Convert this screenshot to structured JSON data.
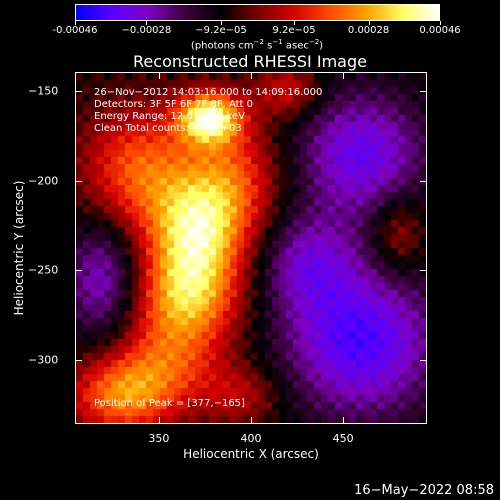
{
  "title": "Reconstructed RHESSI Image",
  "colorbar": {
    "ticks": [
      -0.00046,
      -0.00028,
      -9.2e-05,
      9.2e-05,
      0.00028,
      0.00046
    ],
    "tick_labels": [
      "-0.00046",
      "−0.00028",
      "−9.2e−05",
      "9.2e−05",
      "0.00028",
      "0.00046"
    ],
    "units_label": "(photons cm",
    "units_exp1": "−2",
    "units_mid": " s",
    "units_exp2": "−1",
    "units_mid2": " asec",
    "units_exp3": "−2",
    "units_end": ")",
    "range": [
      -0.00046,
      0.00046
    ],
    "colors": [
      "#0000ff",
      "#5a00ff",
      "#7f00c0",
      "#3c003c",
      "#000000",
      "#7a0000",
      "#d40000",
      "#ff4a00",
      "#ffa000",
      "#ffff60",
      "#ffffff"
    ]
  },
  "annotations": {
    "line1": "26−Nov−2012 14:03:16.000 to 14:09:16.000",
    "line2": "Detectors: 3F 5F 6F 7F 8F, Att 0",
    "line3": "Energy Range: 12.0−25.0 keV",
    "line4": "Clean    Total counts: 5.44E+03",
    "peak": "Position of Peak = [377,−165]"
  },
  "chart_data": {
    "type": "heatmap",
    "title": "Reconstructed RHESSI Image",
    "xlabel": "Heliocentric X (arcsec)",
    "ylabel": "Heliocentric Y (arcsec)",
    "xlim": [
      305,
      495
    ],
    "ylim": [
      -335,
      -140
    ],
    "x_ticks": [
      350,
      400,
      450
    ],
    "y_ticks": [
      -150,
      -200,
      -250,
      -300
    ],
    "x_tick_labels": [
      "350",
      "400",
      "450"
    ],
    "y_tick_labels": [
      "−150",
      "−200",
      "−250",
      "−300"
    ],
    "peak_position": [
      377,
      -165
    ],
    "features": [
      {
        "x": 377,
        "y": -165,
        "amp": 0.00046,
        "sx": 12,
        "sy": 10
      },
      {
        "x": 370,
        "y": -230,
        "amp": 0.00038,
        "sx": 18,
        "sy": 22
      },
      {
        "x": 365,
        "y": -265,
        "amp": 0.00032,
        "sx": 20,
        "sy": 18
      },
      {
        "x": 340,
        "y": -195,
        "amp": 0.00028,
        "sx": 22,
        "sy": 25
      },
      {
        "x": 390,
        "y": -200,
        "amp": 0.00024,
        "sx": 18,
        "sy": 25
      },
      {
        "x": 330,
        "y": -320,
        "amp": 0.0003,
        "sx": 20,
        "sy": 15
      },
      {
        "x": 355,
        "y": -300,
        "amp": 0.00022,
        "sx": 22,
        "sy": 18
      },
      {
        "x": 420,
        "y": -150,
        "amp": 0.00018,
        "sx": 12,
        "sy": 10
      },
      {
        "x": 480,
        "y": -230,
        "amp": 0.00015,
        "sx": 10,
        "sy": 15
      },
      {
        "x": 395,
        "y": -320,
        "amp": 0.00014,
        "sx": 15,
        "sy": 12
      },
      {
        "x": 460,
        "y": -185,
        "amp": -0.00026,
        "sx": 25,
        "sy": 25
      },
      {
        "x": 460,
        "y": -290,
        "amp": -0.0003,
        "sx": 30,
        "sy": 30
      },
      {
        "x": 320,
        "y": -255,
        "amp": -0.00022,
        "sx": 15,
        "sy": 25
      },
      {
        "x": 430,
        "y": -245,
        "amp": -0.00018,
        "sx": 20,
        "sy": 20
      }
    ]
  },
  "footer": {
    "date": "16−May−2022 08:58"
  }
}
